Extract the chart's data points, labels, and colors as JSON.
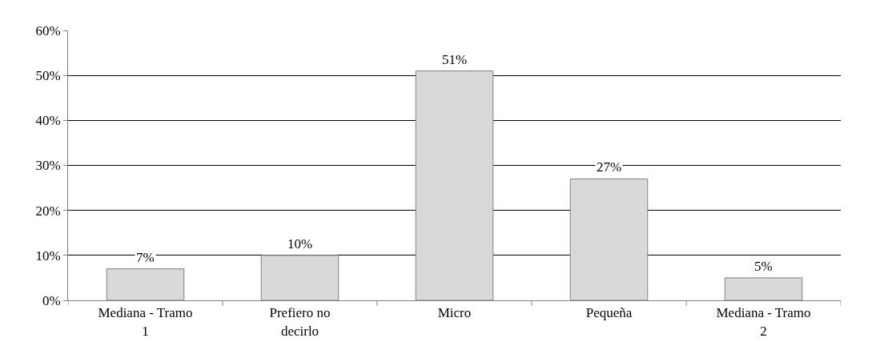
{
  "chart_data": {
    "type": "bar",
    "categories": [
      "Mediana - Tramo\n1",
      "Prefiero no\ndecirlo",
      "Micro",
      "Pequeña",
      "Mediana - Tramo\n2"
    ],
    "values": [
      7,
      10,
      51,
      27,
      5
    ],
    "value_labels": [
      "7%",
      "10%",
      "51%",
      "27%",
      "5%"
    ],
    "color": "#d9d9d9",
    "ylim": [
      0,
      60
    ],
    "yticks": [
      {
        "value": 0,
        "label": "0%"
      },
      {
        "value": 10,
        "label": "10%"
      },
      {
        "value": 20,
        "label": "20%"
      },
      {
        "value": 30,
        "label": "30%"
      },
      {
        "value": 40,
        "label": "40%"
      },
      {
        "value": 50,
        "label": "50%"
      },
      {
        "value": 60,
        "label": "60%"
      }
    ],
    "grid": "y",
    "legend": false
  }
}
